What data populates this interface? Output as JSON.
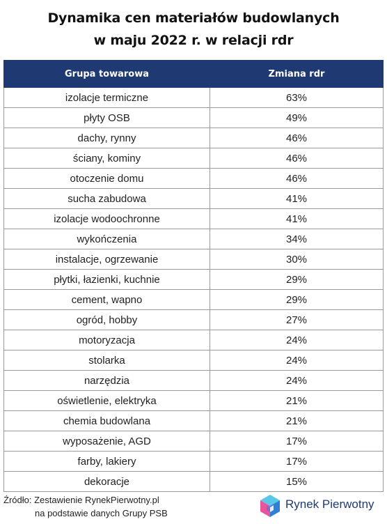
{
  "title_lines": [
    "Dynamika cen materiałów budowlanych",
    "w maju 2022 r. w relacji rdr"
  ],
  "chart_data": {
    "type": "table",
    "title": "Dynamika cen materiałów budowlanych w maju 2022 r. w relacji rdr",
    "columns": [
      "Grupa towarowa",
      "Zmiana rdr"
    ],
    "rows": [
      {
        "category": "izolacje termiczne",
        "value": "63%"
      },
      {
        "category": "płyty OSB",
        "value": "49%"
      },
      {
        "category": "dachy, rynny",
        "value": "46%"
      },
      {
        "category": "ściany, kominy",
        "value": "46%"
      },
      {
        "category": "otoczenie domu",
        "value": "46%"
      },
      {
        "category": "sucha zabudowa",
        "value": "41%"
      },
      {
        "category": "izolacje wodoochronne",
        "value": "41%"
      },
      {
        "category": "wykończenia",
        "value": "34%"
      },
      {
        "category": "instalacje, ogrzewanie",
        "value": "30%"
      },
      {
        "category": "płytki, łazienki, kuchnie",
        "value": "29%"
      },
      {
        "category": "cement, wapno",
        "value": "29%"
      },
      {
        "category": "ogród, hobby",
        "value": "27%"
      },
      {
        "category": "motoryzacja",
        "value": "24%"
      },
      {
        "category": "stolarka",
        "value": "24%"
      },
      {
        "category": "narzędzia",
        "value": "24%"
      },
      {
        "category": "oświetlenie, elektryka",
        "value": "21%"
      },
      {
        "category": "chemia budowlana",
        "value": "21%"
      },
      {
        "category": "wyposażenie, AGD",
        "value": "17%"
      },
      {
        "category": "farby, lakiery",
        "value": "17%"
      },
      {
        "category": "dekoracje",
        "value": "15%"
      }
    ]
  },
  "source": {
    "line1": "Źródło: Zestawienie RynekPierwotny.pl",
    "line2": "na podstawie danych Grupy PSB"
  },
  "logo": {
    "text": "Rynek Pierwotny",
    "icon": "cube-logo-icon",
    "colors": {
      "pink": "#e8559b",
      "blue": "#2f7fd6",
      "cyan": "#59c7e8",
      "purple": "#8e63c9",
      "text": "#1f3a73"
    }
  },
  "colors": {
    "header_bg": "#1f3a73",
    "header_text": "#ffffff",
    "border": "#9a9a9a"
  }
}
